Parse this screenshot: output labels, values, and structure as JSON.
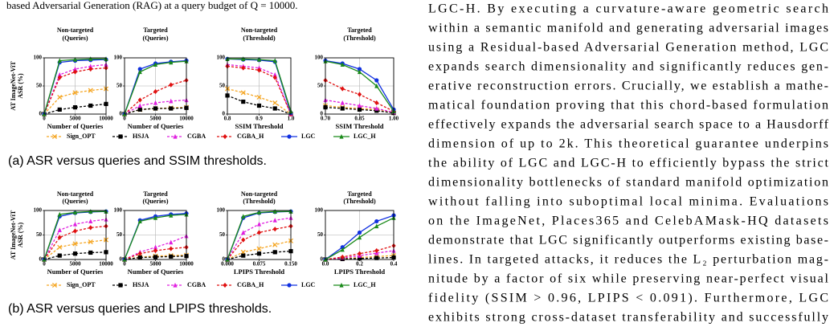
{
  "document": {
    "top_line": "based Adversarial Generation (RAG) at a query budget of Q = 10000.",
    "captions": [
      "(a) ASR versus queries and SSIM thresholds.",
      "(b) ASR versus queries and LPIPS thresholds."
    ],
    "text_lines": [
      "LGC-H. By executing a curvature-aware geometric search",
      "within a semantic manifold and generating adversarial images",
      "using a Residual-based Adversarial Generation method, LGC",
      "expands search dimensionality and significantly reduces gen-",
      "erative reconstruction errors. Crucially, we establish a mathe-",
      "matical foundation proving that this chord-based formulation",
      "effectively expands the adversarial search space to a Hausdorff",
      "dimension of up to 2k. This theoretical guarantee underpins",
      "the ability of LGC and LGC-H to efficiently bypass the strict",
      "dimensionality bottlenecks of standard manifold optimization",
      "without falling into suboptimal local minima. Evaluations",
      "on the ImageNet, Places365 and CelebAMask-HQ datasets",
      "demonstrate that LGC significantly outperforms existing base-",
      "lines. In targeted attacks, it reduces the L₂ perturbation mag-",
      "nitude by a factor of six while preserving near-perfect visual",
      "fidelity (SSIM > 0.96, LPIPS < 0.091). Furthermore, LGC",
      "exhibits strong cross-dataset transferability and successfully"
    ]
  },
  "chart_data": [
    {
      "type": "line",
      "title": "Non-targeted",
      "subtitle": "(Queries)",
      "xlabel": "Number of Queries",
      "ylabel": [
        "AT ImageNet-ViT",
        "ASR (%)"
      ],
      "x": [
        0,
        2500,
        5000,
        7500,
        10000
      ],
      "xlim": [
        0,
        10000
      ],
      "xticks": [
        0,
        5000,
        10000
      ],
      "ylim": [
        0,
        100
      ],
      "yticks": [
        0,
        50,
        100
      ],
      "grid": true,
      "series": [
        {
          "name": "Sign_OPT",
          "color": "#f5a623",
          "dashed": true,
          "marker": "x",
          "values": [
            0,
            30,
            38,
            42,
            45
          ]
        },
        {
          "name": "HSJA",
          "color": "#000000",
          "dashed": true,
          "marker": "square",
          "values": [
            0,
            8,
            12,
            15,
            18
          ]
        },
        {
          "name": "CGBA",
          "color": "#e020e0",
          "dashed": true,
          "marker": "triangle",
          "values": [
            0,
            70,
            80,
            85,
            88
          ]
        },
        {
          "name": "CGBA_H",
          "color": "#e01010",
          "dashed": true,
          "marker": "diamond",
          "values": [
            0,
            65,
            75,
            80,
            82
          ]
        },
        {
          "name": "LGC",
          "color": "#1030e0",
          "dashed": false,
          "marker": "circle",
          "values": [
            0,
            92,
            95,
            96,
            97
          ]
        },
        {
          "name": "LGC_H",
          "color": "#1a8a1a",
          "dashed": false,
          "marker": "triangle",
          "values": [
            0,
            95,
            97,
            98,
            98
          ]
        }
      ]
    },
    {
      "type": "line",
      "title": "Targeted",
      "subtitle": "(Queries)",
      "xlabel": "Number of Queries",
      "x": [
        0,
        2500,
        5000,
        7500,
        10000
      ],
      "xlim": [
        0,
        10000
      ],
      "xticks": [
        0,
        5000,
        10000
      ],
      "ylim": [
        0,
        100
      ],
      "yticks": [
        0,
        50,
        100
      ],
      "grid": true,
      "series": [
        {
          "color": "#f5a623",
          "dashed": true,
          "marker": "x",
          "values": [
            0,
            8,
            10,
            11,
            12
          ]
        },
        {
          "color": "#000000",
          "dashed": true,
          "marker": "square",
          "values": [
            0,
            8,
            10,
            10,
            11
          ]
        },
        {
          "color": "#e020e0",
          "dashed": true,
          "marker": "triangle",
          "values": [
            0,
            15,
            20,
            23,
            25
          ]
        },
        {
          "color": "#e01010",
          "dashed": true,
          "marker": "diamond",
          "values": [
            0,
            25,
            40,
            52,
            60
          ]
        },
        {
          "color": "#1030e0",
          "dashed": false,
          "marker": "circle",
          "values": [
            0,
            80,
            90,
            93,
            95
          ]
        },
        {
          "color": "#1a8a1a",
          "dashed": false,
          "marker": "triangle",
          "values": [
            0,
            75,
            88,
            92,
            94
          ]
        }
      ]
    },
    {
      "type": "line",
      "title": "Non-targeted",
      "subtitle": "(Threshold)",
      "xlabel": "SSIM Threshold",
      "x": [
        0.8,
        0.85,
        0.9,
        0.95,
        1.0
      ],
      "xlim": [
        0.8,
        1.0
      ],
      "xticks": [
        0.8,
        0.9,
        {
          "value": 1.0,
          "label": "1.0"
        }
      ],
      "ylim": [
        0,
        100
      ],
      "yticks": [
        0,
        50,
        100
      ],
      "grid": true,
      "series": [
        {
          "color": "#f5a623",
          "dashed": true,
          "marker": "x",
          "values": [
            45,
            38,
            30,
            20,
            0
          ]
        },
        {
          "color": "#000000",
          "dashed": true,
          "marker": "square",
          "values": [
            33,
            22,
            15,
            10,
            0
          ]
        },
        {
          "color": "#e020e0",
          "dashed": true,
          "marker": "triangle",
          "values": [
            88,
            85,
            82,
            70,
            0
          ]
        },
        {
          "color": "#e01010",
          "dashed": true,
          "marker": "diamond",
          "values": [
            85,
            82,
            78,
            65,
            0
          ]
        },
        {
          "color": "#1030e0",
          "dashed": false,
          "marker": "circle",
          "values": [
            98,
            97,
            96,
            93,
            2
          ]
        },
        {
          "color": "#1a8a1a",
          "dashed": false,
          "marker": "triangle",
          "values": [
            98,
            98,
            97,
            95,
            5
          ]
        }
      ]
    },
    {
      "type": "line",
      "title": "Targeted",
      "subtitle": "(Threshold)",
      "xlabel": "SSIM Threshold",
      "x": [
        0.7,
        0.775,
        0.85,
        0.925,
        1.0
      ],
      "xlim": [
        0.7,
        1.0
      ],
      "xticks": [
        {
          "value": 0.7,
          "label": "0.70"
        },
        0.85,
        {
          "value": 1.0,
          "label": "1.00"
        }
      ],
      "ylim": [
        0,
        100
      ],
      "yticks": [
        0,
        50,
        100
      ],
      "grid": true,
      "series": [
        {
          "color": "#f5a623",
          "dashed": true,
          "marker": "x",
          "values": [
            15,
            12,
            10,
            8,
            2
          ]
        },
        {
          "color": "#000000",
          "dashed": true,
          "marker": "square",
          "values": [
            12,
            10,
            8,
            6,
            2
          ]
        },
        {
          "color": "#e020e0",
          "dashed": true,
          "marker": "triangle",
          "values": [
            25,
            20,
            15,
            10,
            3
          ]
        },
        {
          "color": "#e01010",
          "dashed": true,
          "marker": "diamond",
          "values": [
            60,
            45,
            35,
            20,
            5
          ]
        },
        {
          "color": "#1030e0",
          "dashed": false,
          "marker": "circle",
          "values": [
            95,
            90,
            80,
            60,
            8
          ]
        },
        {
          "color": "#1a8a1a",
          "dashed": false,
          "marker": "triangle",
          "values": [
            94,
            88,
            75,
            50,
            5
          ]
        }
      ]
    },
    {
      "type": "line",
      "title": "Non-targeted",
      "subtitle": "(Queries)",
      "xlabel": "Number of Queries",
      "ylabel": [
        "AT ImageNet-ViT",
        "ASR (%)"
      ],
      "x": [
        0,
        2500,
        5000,
        7500,
        10000
      ],
      "xlim": [
        0,
        10000
      ],
      "xticks": [
        0,
        5000,
        10000
      ],
      "ylim": [
        0,
        100
      ],
      "yticks": [
        0,
        50,
        100
      ],
      "grid": true,
      "series": [
        {
          "name": "Sign_OPT",
          "color": "#f5a623",
          "dashed": true,
          "marker": "x",
          "values": [
            0,
            25,
            32,
            36,
            40
          ]
        },
        {
          "name": "HSJA",
          "color": "#000000",
          "dashed": true,
          "marker": "square",
          "values": [
            0,
            8,
            12,
            14,
            15
          ]
        },
        {
          "name": "CGBA",
          "color": "#e020e0",
          "dashed": true,
          "marker": "triangle",
          "values": [
            0,
            60,
            72,
            78,
            82
          ]
        },
        {
          "name": "CGBA_H",
          "color": "#e01010",
          "dashed": true,
          "marker": "diamond",
          "values": [
            0,
            45,
            58,
            65,
            68
          ]
        },
        {
          "name": "LGC",
          "color": "#1030e0",
          "dashed": false,
          "marker": "circle",
          "values": [
            0,
            88,
            95,
            97,
            98
          ]
        },
        {
          "name": "LGC_H",
          "color": "#1a8a1a",
          "dashed": false,
          "marker": "triangle",
          "values": [
            0,
            92,
            96,
            98,
            98
          ]
        }
      ]
    },
    {
      "type": "line",
      "title": "Targeted",
      "subtitle": "(Queries)",
      "xlabel": "Number of Queries",
      "x": [
        0,
        2500,
        5000,
        7500,
        10000
      ],
      "xlim": [
        0,
        10000
      ],
      "xticks": [
        0,
        5000,
        10000
      ],
      "ylim": [
        0,
        100
      ],
      "yticks": [
        0,
        50,
        100
      ],
      "grid": true,
      "series": [
        {
          "color": "#f5a623",
          "dashed": true,
          "marker": "x",
          "values": [
            0,
            5,
            7,
            8,
            9
          ]
        },
        {
          "color": "#000000",
          "dashed": true,
          "marker": "square",
          "values": [
            0,
            4,
            5,
            6,
            7
          ]
        },
        {
          "color": "#e020e0",
          "dashed": true,
          "marker": "triangle",
          "values": [
            0,
            15,
            25,
            35,
            48
          ]
        },
        {
          "color": "#e01010",
          "dashed": true,
          "marker": "diamond",
          "values": [
            0,
            12,
            18,
            22,
            25
          ]
        },
        {
          "color": "#1030e0",
          "dashed": false,
          "marker": "circle",
          "values": [
            0,
            80,
            88,
            92,
            94
          ]
        },
        {
          "color": "#1a8a1a",
          "dashed": false,
          "marker": "triangle",
          "values": [
            0,
            78,
            85,
            90,
            92
          ]
        }
      ]
    },
    {
      "type": "line",
      "title": "Non-targeted",
      "subtitle": "(Threshold)",
      "xlabel": "LPIPS Threshold",
      "x": [
        0,
        0.0375,
        0.075,
        0.1125,
        0.15
      ],
      "xlim": [
        0,
        0.15
      ],
      "xticks": [
        {
          "value": 0,
          "label": "0.000"
        },
        0.075,
        {
          "value": 0.15,
          "label": "0.150"
        }
      ],
      "ylim": [
        0,
        100
      ],
      "yticks": [
        0,
        50,
        100
      ],
      "grid": true,
      "series": [
        {
          "color": "#f5a623",
          "dashed": true,
          "marker": "x",
          "values": [
            0,
            15,
            22,
            30,
            38
          ]
        },
        {
          "color": "#000000",
          "dashed": true,
          "marker": "square",
          "values": [
            0,
            8,
            12,
            15,
            17
          ]
        },
        {
          "color": "#e020e0",
          "dashed": true,
          "marker": "triangle",
          "values": [
            0,
            55,
            72,
            80,
            85
          ]
        },
        {
          "color": "#e01010",
          "dashed": true,
          "marker": "diamond",
          "values": [
            0,
            40,
            55,
            62,
            68
          ]
        },
        {
          "color": "#1030e0",
          "dashed": false,
          "marker": "circle",
          "values": [
            0,
            85,
            95,
            97,
            98
          ]
        },
        {
          "color": "#1a8a1a",
          "dashed": false,
          "marker": "triangle",
          "values": [
            0,
            88,
            96,
            98,
            98
          ]
        }
      ]
    },
    {
      "type": "line",
      "title": "Targeted",
      "subtitle": "(Threshold)",
      "xlabel": "LPIPS Threshold",
      "x": [
        0,
        0.1,
        0.2,
        0.3,
        0.4
      ],
      "xlim": [
        0,
        0.4
      ],
      "xticks": [
        {
          "value": 0,
          "label": "0.0"
        },
        0.2,
        0.4
      ],
      "ylim": [
        0,
        100
      ],
      "yticks": [
        0,
        50,
        100
      ],
      "grid": true,
      "series": [
        {
          "color": "#f5a623",
          "dashed": true,
          "marker": "x",
          "values": [
            0,
            2,
            4,
            6,
            8
          ]
        },
        {
          "color": "#000000",
          "dashed": true,
          "marker": "square",
          "values": [
            0,
            1,
            2,
            3,
            4
          ]
        },
        {
          "color": "#e020e0",
          "dashed": true,
          "marker": "triangle",
          "values": [
            0,
            3,
            8,
            13,
            18
          ]
        },
        {
          "color": "#e01010",
          "dashed": true,
          "marker": "diamond",
          "values": [
            0,
            5,
            12,
            18,
            28
          ]
        },
        {
          "color": "#1030e0",
          "dashed": false,
          "marker": "circle",
          "values": [
            0,
            25,
            55,
            78,
            90
          ]
        },
        {
          "color": "#1a8a1a",
          "dashed": false,
          "marker": "triangle",
          "values": [
            0,
            20,
            45,
            68,
            85
          ]
        }
      ]
    }
  ]
}
